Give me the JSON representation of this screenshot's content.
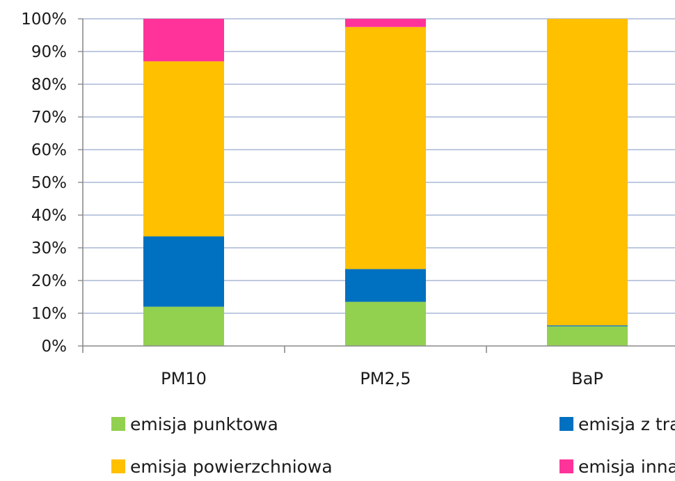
{
  "chart_data": {
    "type": "bar",
    "stacked": true,
    "normalized": true,
    "categories": [
      "PM10",
      "PM2,5",
      "BaP"
    ],
    "series": [
      {
        "name": "emisja punktowa",
        "color": "#92d050",
        "values": [
          12,
          13.5,
          6
        ]
      },
      {
        "name": "emisja z transportu",
        "color": "#0070c0",
        "values": [
          21.5,
          10,
          0.3
        ]
      },
      {
        "name": "emisja powierzchniowa",
        "color": "#ffc000",
        "values": [
          53.5,
          74,
          93.7
        ]
      },
      {
        "name": "emisja inna",
        "color": "#ff3399",
        "values": [
          13,
          2.5,
          0
        ]
      }
    ],
    "ylim": [
      0,
      100
    ],
    "yticks": [
      "0%",
      "10%",
      "20%",
      "30%",
      "40%",
      "50%",
      "60%",
      "70%",
      "80%",
      "90%",
      "100%"
    ],
    "grid": true,
    "legend_position": "bottom"
  }
}
